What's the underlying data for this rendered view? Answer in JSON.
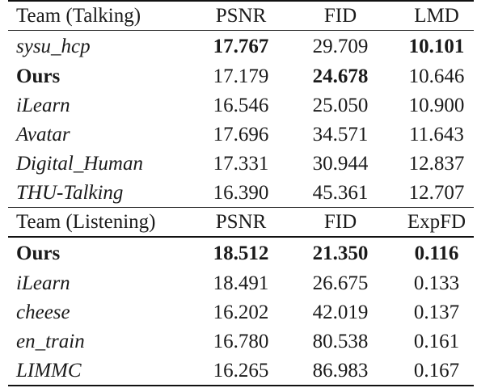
{
  "talking": {
    "headers": [
      "Team (Talking)",
      "PSNR",
      "FID",
      "LMD"
    ],
    "rows": [
      {
        "team": "sysu_hcp",
        "psnr": "17.767",
        "fid": "29.709",
        "third": "10.101"
      },
      {
        "team": "Ours",
        "psnr": "17.179",
        "fid": "24.678",
        "third": "10.646"
      },
      {
        "team": "iLearn",
        "psnr": "16.546",
        "fid": "25.050",
        "third": "10.900"
      },
      {
        "team": "Avatar",
        "psnr": "17.696",
        "fid": "34.571",
        "third": "11.643"
      },
      {
        "team": "Digital_Human",
        "psnr": "17.331",
        "fid": "30.944",
        "third": "12.837"
      },
      {
        "team": "THU-Talking",
        "psnr": "16.390",
        "fid": "45.361",
        "third": "12.707"
      }
    ]
  },
  "listening": {
    "headers": [
      "Team (Listening)",
      "PSNR",
      "FID",
      "ExpFD"
    ],
    "rows": [
      {
        "team": "Ours",
        "psnr": "18.512",
        "fid": "21.350",
        "third": "0.116"
      },
      {
        "team": "iLearn",
        "psnr": "18.491",
        "fid": "26.675",
        "third": "0.133"
      },
      {
        "team": "cheese",
        "psnr": "16.202",
        "fid": "42.019",
        "third": "0.137"
      },
      {
        "team": "en_train",
        "psnr": "16.780",
        "fid": "80.538",
        "third": "0.161"
      },
      {
        "team": "LIMMC",
        "psnr": "16.265",
        "fid": "86.983",
        "third": "0.167"
      }
    ]
  }
}
